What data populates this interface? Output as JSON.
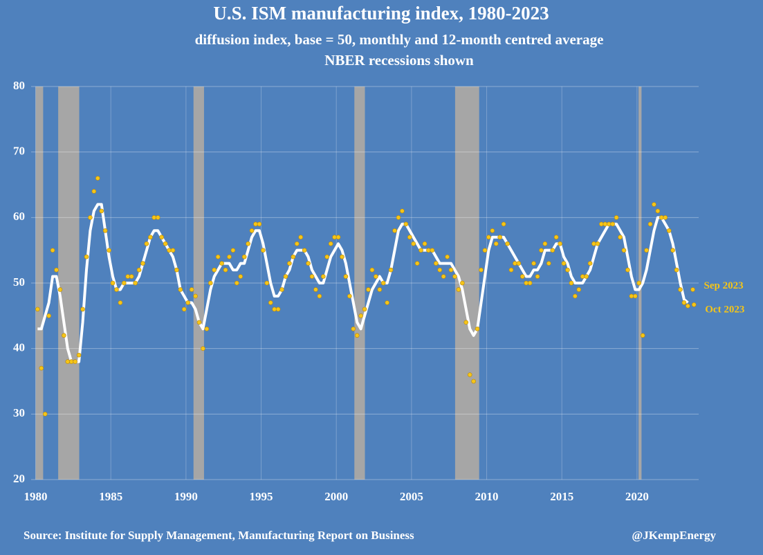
{
  "chart_data": {
    "type": "line",
    "title": "U.S. ISM manufacturing index, 1980-2023",
    "subtitle": "diffusion index, base = 50, monthly and 12-month centred average",
    "note": "NBER recessions shown",
    "source": "Source: Institute for Supply Management, Manufacturing Report on Business",
    "credit": "@JKempEnergy",
    "annotations": [
      "Sep 2023",
      "Oct 2023"
    ],
    "xlim": [
      1979.7,
      2024.1
    ],
    "ylim": [
      20,
      80
    ],
    "xticks": [
      1980,
      1985,
      1990,
      1995,
      2000,
      2005,
      2010,
      2015,
      2020
    ],
    "yticks": [
      20,
      30,
      40,
      50,
      60,
      70,
      80
    ],
    "grid": true,
    "recessions": [
      [
        1980.0,
        1980.5
      ],
      [
        1981.5,
        1982.9
      ],
      [
        1990.5,
        1991.2
      ],
      [
        2001.2,
        2001.9
      ],
      [
        2007.9,
        2009.5
      ],
      [
        2020.1,
        2020.3
      ]
    ],
    "recession_color": "#a6a6a6",
    "x": [
      1980.13,
      1980.38,
      1980.63,
      1980.88,
      1981.13,
      1981.38,
      1981.63,
      1981.88,
      1982.13,
      1982.38,
      1982.63,
      1982.88,
      1983.13,
      1983.38,
      1983.63,
      1983.88,
      1984.13,
      1984.38,
      1984.63,
      1984.88,
      1985.13,
      1985.38,
      1985.63,
      1985.88,
      1986.13,
      1986.38,
      1986.63,
      1986.88,
      1987.13,
      1987.38,
      1987.63,
      1987.88,
      1988.13,
      1988.38,
      1988.63,
      1988.88,
      1989.13,
      1989.38,
      1989.63,
      1989.88,
      1990.13,
      1990.38,
      1990.63,
      1990.88,
      1991.13,
      1991.38,
      1991.63,
      1991.88,
      1992.13,
      1992.38,
      1992.63,
      1992.88,
      1993.13,
      1993.38,
      1993.63,
      1993.88,
      1994.13,
      1994.38,
      1994.63,
      1994.88,
      1995.13,
      1995.38,
      1995.63,
      1995.88,
      1996.13,
      1996.38,
      1996.63,
      1996.88,
      1997.13,
      1997.38,
      1997.63,
      1997.88,
      1998.13,
      1998.38,
      1998.63,
      1998.88,
      1999.13,
      1999.38,
      1999.63,
      1999.88,
      2000.13,
      2000.38,
      2000.63,
      2000.88,
      2001.13,
      2001.38,
      2001.63,
      2001.88,
      2002.13,
      2002.38,
      2002.63,
      2002.88,
      2003.13,
      2003.38,
      2003.63,
      2003.88,
      2004.13,
      2004.38,
      2004.63,
      2004.88,
      2005.13,
      2005.38,
      2005.63,
      2005.88,
      2006.13,
      2006.38,
      2006.63,
      2006.88,
      2007.13,
      2007.38,
      2007.63,
      2007.88,
      2008.13,
      2008.38,
      2008.63,
      2008.88,
      2009.13,
      2009.38,
      2009.63,
      2009.88,
      2010.13,
      2010.38,
      2010.63,
      2010.88,
      2011.13,
      2011.38,
      2011.63,
      2011.88,
      2012.13,
      2012.38,
      2012.63,
      2012.88,
      2013.13,
      2013.38,
      2013.63,
      2013.88,
      2014.13,
      2014.38,
      2014.63,
      2014.88,
      2015.13,
      2015.38,
      2015.63,
      2015.88,
      2016.13,
      2016.38,
      2016.63,
      2016.88,
      2017.13,
      2017.38,
      2017.63,
      2017.88,
      2018.13,
      2018.38,
      2018.63,
      2018.88,
      2019.13,
      2019.38,
      2019.63,
      2019.88,
      2020.13,
      2020.38,
      2020.63,
      2020.88,
      2021.13,
      2021.38,
      2021.63,
      2021.88,
      2022.13,
      2022.38,
      2022.63,
      2022.88,
      2023.13,
      2023.38,
      2023.71,
      2023.79
    ],
    "series": [
      {
        "color": "#f5c518",
        "values": [
          46,
          37,
          30,
          45,
          55,
          52,
          49,
          42,
          38,
          38,
          38,
          39,
          46,
          54,
          60,
          64,
          66,
          61,
          58,
          55,
          50,
          49,
          47,
          50,
          51,
          51,
          50,
          52,
          53,
          56,
          57,
          60,
          60,
          57,
          56,
          55,
          55,
          52,
          49,
          46,
          47,
          49,
          48,
          44,
          40,
          43,
          50,
          52,
          54,
          53,
          52,
          54,
          55,
          50,
          51,
          54,
          56,
          58,
          59,
          59,
          55,
          50,
          47,
          46,
          46,
          49,
          51,
          53,
          54,
          56,
          57,
          55,
          53,
          51,
          49,
          48,
          51,
          54,
          56,
          57,
          57,
          54,
          51,
          48,
          43,
          42,
          45,
          46,
          49,
          52,
          51,
          49,
          50,
          47,
          52,
          58,
          60,
          61,
          59,
          57,
          56,
          53,
          55,
          56,
          55,
          55,
          53,
          52,
          51,
          54,
          52,
          51,
          49,
          50,
          44,
          36,
          35,
          43,
          52,
          55,
          57,
          58,
          56,
          57,
          59,
          56,
          52,
          53,
          53,
          51,
          50,
          50,
          53,
          51,
          55,
          56,
          53,
          55,
          57,
          56,
          53,
          52,
          50,
          48,
          49,
          51,
          51,
          53,
          56,
          56,
          59,
          59,
          59,
          59,
          60,
          57,
          55,
          52,
          48,
          48,
          50,
          42,
          55,
          59,
          62,
          61,
          60,
          60,
          58,
          55,
          52,
          49,
          47,
          46.5,
          49,
          46.7
        ]
      },
      {
        "color": "#ffffff",
        "values": [
          43,
          43,
          45,
          47,
          51,
          51,
          48,
          44,
          40,
          38,
          38,
          38,
          44,
          52,
          58,
          61,
          62,
          62,
          58,
          54,
          51,
          49,
          49,
          50,
          50,
          50,
          50,
          51,
          53,
          55,
          57,
          58,
          58,
          57,
          56,
          55,
          54,
          52,
          49,
          48,
          47,
          47,
          46,
          44,
          43,
          46,
          49,
          51,
          52,
          53,
          53,
          53,
          52,
          52,
          53,
          53,
          55,
          57,
          58,
          58,
          56,
          53,
          50,
          48,
          48,
          49,
          51,
          52,
          54,
          55,
          55,
          55,
          54,
          52,
          51,
          50,
          50,
          52,
          54,
          55,
          56,
          55,
          53,
          50,
          47,
          44,
          43,
          45,
          47,
          49,
          50,
          51,
          50,
          50,
          52,
          55,
          58,
          59,
          59,
          58,
          57,
          56,
          55,
          55,
          55,
          55,
          54,
          53,
          53,
          53,
          53,
          52,
          51,
          49,
          46,
          43,
          42,
          43,
          47,
          51,
          55,
          57,
          57,
          57,
          57,
          56,
          55,
          54,
          53,
          52,
          51,
          51,
          52,
          52,
          53,
          55,
          55,
          55,
          56,
          56,
          54,
          53,
          51,
          50,
          50,
          50,
          51,
          52,
          54,
          56,
          57,
          58,
          59,
          59,
          59,
          58,
          57,
          54,
          51,
          49,
          49,
          50,
          52,
          55,
          58,
          60,
          60,
          59,
          58,
          56,
          53,
          50,
          47.5,
          47,
          null,
          null
        ]
      }
    ]
  }
}
